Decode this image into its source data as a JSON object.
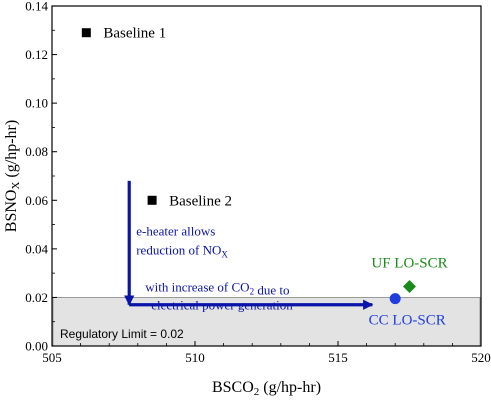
{
  "chart_data": {
    "type": "scatter",
    "xlabel": "BSCO2 (g/hp-hr)",
    "ylabel": "BSNOX (g/hp-hr)",
    "xlim": [
      505,
      520
    ],
    "ylim": [
      0,
      0.14
    ],
    "x_ticks": [
      505,
      510,
      515,
      520
    ],
    "x_tick_labels": [
      "505",
      "510",
      "515",
      "520"
    ],
    "y_ticks": [
      0,
      0.02,
      0.04,
      0.06,
      0.08,
      0.1,
      0.12,
      0.14
    ],
    "y_tick_labels": [
      "0.00",
      "0.02",
      "0.04",
      "0.06",
      "0.08",
      "0.10",
      "0.12",
      "0.14"
    ],
    "grid": false,
    "points": [
      {
        "label": "Baseline 1",
        "x": 506.2,
        "y": 0.129,
        "marker": "square",
        "color": "#000000"
      },
      {
        "label": "Baseline 2",
        "x": 508.5,
        "y": 0.06,
        "marker": "square",
        "color": "#000000"
      },
      {
        "label": "UF LO-SCR",
        "x": 517.5,
        "y": 0.0245,
        "marker": "diamond",
        "color": "#1a8a1a"
      },
      {
        "label": "CC LO-SCR",
        "x": 517.0,
        "y": 0.0195,
        "marker": "circle",
        "color": "#1f3de0"
      }
    ],
    "regulatory_limit": {
      "label": "Regulatory Limit = 0.02",
      "y": 0.02,
      "fill": "#e3e3e3"
    },
    "annotations": [
      {
        "text_lines": [
          "e-heater allows",
          "reduction of NOX"
        ],
        "color": "#0a14a8"
      },
      {
        "text_lines": [
          "with increase of CO2 due to",
          "electrical power generation"
        ],
        "color": "#0a14a8"
      }
    ],
    "arrows": [
      {
        "from": [
          507.7,
          0.068
        ],
        "to": [
          507.7,
          0.017
        ],
        "color": "#0a14a8"
      },
      {
        "from": [
          507.7,
          0.017
        ],
        "to": [
          516.2,
          0.017
        ],
        "color": "#0a14a8"
      }
    ]
  }
}
